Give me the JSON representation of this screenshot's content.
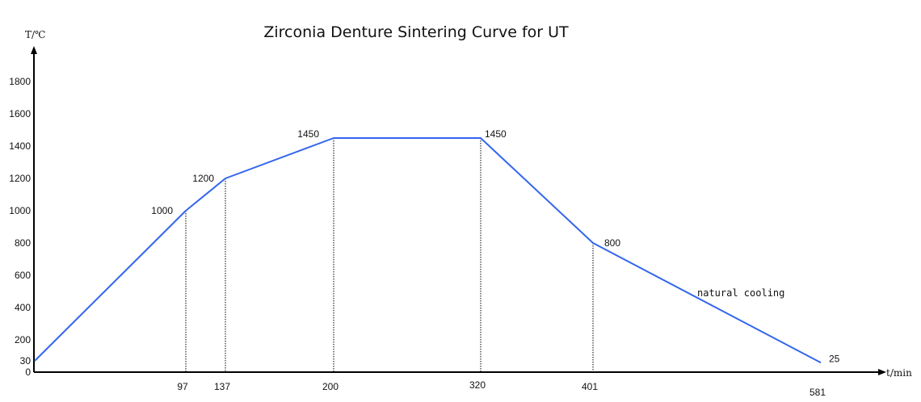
{
  "chart_data": {
    "type": "line",
    "title": "Zirconia Denture Sintering Curve for UT",
    "xlabel": "t/min",
    "ylabel": "T/℃",
    "x_tick_labels": [
      "97",
      "137",
      "200",
      "320",
      "401",
      "581"
    ],
    "y_tick_labels": [
      "0",
      "30",
      "200",
      "400",
      "600",
      "800",
      "1000",
      "1200",
      "1400",
      "1600",
      "1800"
    ],
    "points": [
      {
        "x": 0,
        "y": 30,
        "label": ""
      },
      {
        "x": 97,
        "y": 1000,
        "label": "1000"
      },
      {
        "x": 137,
        "y": 1200,
        "label": "1200"
      },
      {
        "x": 200,
        "y": 1450,
        "label": "1450"
      },
      {
        "x": 320,
        "y": 1450,
        "label": "1450"
      },
      {
        "x": 401,
        "y": 800,
        "label": "800"
      },
      {
        "x": 581,
        "y": 25,
        "label": "25"
      }
    ],
    "guide_line_x": [
      97,
      137,
      200,
      320,
      401
    ],
    "annotations": [
      "natural cooling"
    ],
    "grid": false,
    "line_color": "#3366ee"
  }
}
